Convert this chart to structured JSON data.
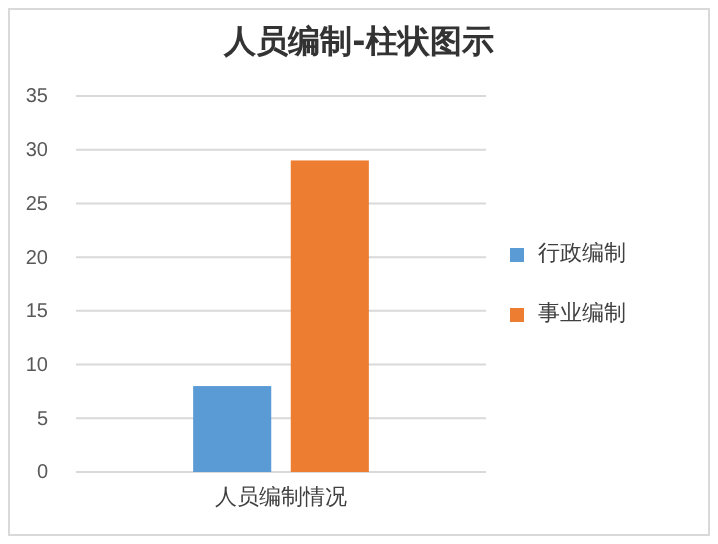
{
  "chart_data": {
    "type": "bar",
    "title": "人员编制-柱状图示",
    "categories": [
      "人员编制情况"
    ],
    "series": [
      {
        "name": "行政编制",
        "color": "#5b9bd5",
        "values": [
          8
        ]
      },
      {
        "name": "事业编制",
        "color": "#ed7d31",
        "values": [
          29
        ]
      }
    ],
    "ylim": [
      0,
      35
    ],
    "yticks": [
      0,
      5,
      10,
      15,
      20,
      25,
      30,
      35
    ],
    "grid": "y",
    "legend": "right"
  }
}
